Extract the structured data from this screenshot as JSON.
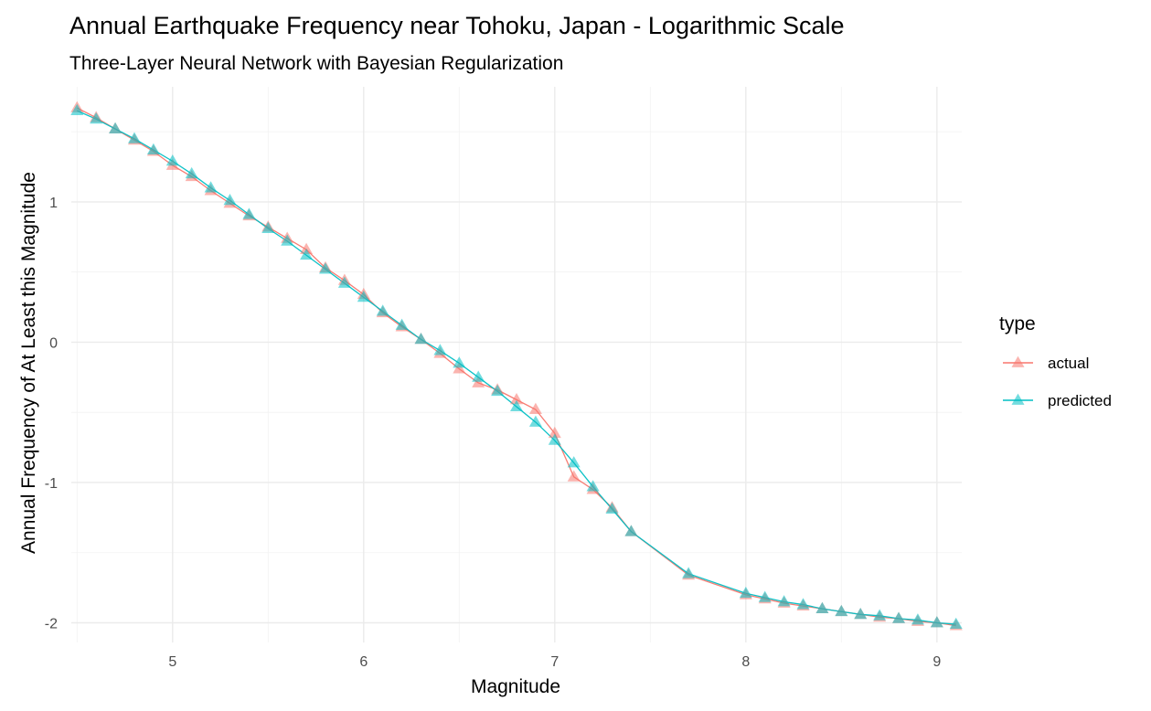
{
  "chart_data": {
    "type": "line",
    "title": "Annual Earthquake Frequency near Tohoku, Japan - Logarithmic Scale",
    "subtitle": "Three-Layer Neural Network with Bayesian Regularization",
    "xlabel": "Magnitude",
    "ylabel": "Annual Frequency of At Least this Magnitude",
    "xlim": [
      4.47,
      9.13
    ],
    "ylim": [
      -2.14,
      1.82
    ],
    "x_ticks": [
      "5",
      "6",
      "7",
      "8",
      "9"
    ],
    "x_tick_values": [
      5,
      6,
      7,
      8,
      9
    ],
    "y_ticks": [
      "-2",
      "-1",
      "0",
      "1"
    ],
    "y_tick_values": [
      -2,
      -1,
      0,
      1
    ],
    "grid": true,
    "legend": {
      "title": "type",
      "position": "right"
    },
    "series": [
      {
        "name": "actual",
        "color": "#F8766D",
        "marker": "triangle",
        "x": [
          4.5,
          4.6,
          4.7,
          4.8,
          4.9,
          5.0,
          5.1,
          5.2,
          5.3,
          5.4,
          5.5,
          5.6,
          5.7,
          5.8,
          5.9,
          6.0,
          6.1,
          6.2,
          6.3,
          6.4,
          6.5,
          6.6,
          6.7,
          6.8,
          6.9,
          7.0,
          7.1,
          7.2,
          7.3,
          7.4,
          7.7,
          8.0,
          8.1,
          8.2,
          8.3,
          8.4,
          8.5,
          8.6,
          8.7,
          8.8,
          8.9,
          9.0,
          9.1
        ],
        "y": [
          1.67,
          1.6,
          1.52,
          1.44,
          1.36,
          1.26,
          1.18,
          1.08,
          0.99,
          0.9,
          0.82,
          0.74,
          0.66,
          0.53,
          0.44,
          0.34,
          0.21,
          0.11,
          0.02,
          -0.08,
          -0.19,
          -0.29,
          -0.34,
          -0.41,
          -0.48,
          -0.65,
          -0.96,
          -1.05,
          -1.18,
          -1.35,
          -1.66,
          -1.8,
          -1.83,
          -1.86,
          -1.88,
          -1.9,
          -1.92,
          -1.94,
          -1.96,
          -1.97,
          -1.99,
          -2.0,
          -2.02
        ]
      },
      {
        "name": "predicted",
        "color": "#00BFC4",
        "marker": "triangle",
        "x": [
          4.5,
          4.6,
          4.7,
          4.8,
          4.9,
          5.0,
          5.1,
          5.2,
          5.3,
          5.4,
          5.5,
          5.6,
          5.7,
          5.8,
          5.9,
          6.0,
          6.1,
          6.2,
          6.3,
          6.4,
          6.5,
          6.6,
          6.7,
          6.8,
          6.9,
          7.0,
          7.1,
          7.2,
          7.3,
          7.4,
          7.7,
          8.0,
          8.1,
          8.2,
          8.3,
          8.4,
          8.5,
          8.6,
          8.7,
          8.8,
          8.9,
          9.0,
          9.1
        ],
        "y": [
          1.65,
          1.59,
          1.52,
          1.45,
          1.37,
          1.29,
          1.2,
          1.1,
          1.01,
          0.91,
          0.81,
          0.72,
          0.62,
          0.52,
          0.42,
          0.32,
          0.22,
          0.12,
          0.02,
          -0.06,
          -0.15,
          -0.25,
          -0.35,
          -0.46,
          -0.57,
          -0.7,
          -0.86,
          -1.03,
          -1.19,
          -1.35,
          -1.65,
          -1.79,
          -1.82,
          -1.85,
          -1.87,
          -1.9,
          -1.92,
          -1.94,
          -1.95,
          -1.97,
          -1.98,
          -2.0,
          -2.01
        ]
      }
    ]
  }
}
